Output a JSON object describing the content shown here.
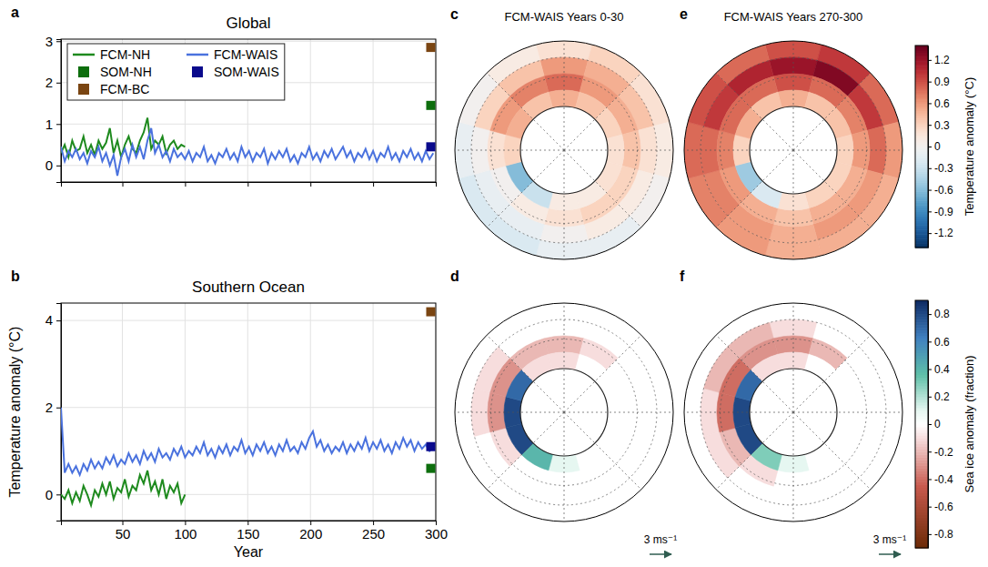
{
  "chart_data": [
    {
      "type": "line",
      "letter": "a",
      "title": "Global",
      "xlim": [
        1,
        300
      ],
      "xticks": [
        50,
        100,
        150,
        200,
        250,
        300
      ],
      "ylim": [
        -0.4,
        3.05
      ],
      "yticks": [
        0,
        1,
        2,
        3
      ],
      "grid": true,
      "tick_labels": "y",
      "legend": "upper left",
      "series": [
        {
          "name": "FCM-NH",
          "color": "#1e8a1e",
          "x": [
            1,
            4,
            7,
            10,
            13,
            16,
            19,
            22,
            25,
            28,
            31,
            34,
            37,
            40,
            43,
            46,
            49,
            52,
            55,
            58,
            61,
            64,
            67,
            70,
            73,
            76,
            79,
            82,
            85,
            88,
            91,
            94,
            97,
            100
          ],
          "values": [
            0.3,
            0.5,
            0.2,
            0.6,
            0.35,
            0.4,
            0.7,
            0.3,
            0.5,
            0.25,
            0.6,
            0.4,
            0.55,
            0.9,
            0.3,
            0.6,
            0.2,
            0.5,
            0.7,
            0.4,
            0.3,
            0.6,
            0.8,
            1.15,
            0.4,
            0.6,
            0.5,
            0.7,
            0.3,
            0.5,
            0.6,
            0.4,
            0.5,
            0.45
          ]
        },
        {
          "name": "FCM-WAIS",
          "color": "#4a72de",
          "x": [
            1,
            4,
            7,
            10,
            13,
            16,
            19,
            22,
            25,
            28,
            31,
            34,
            37,
            40,
            43,
            46,
            49,
            52,
            55,
            58,
            61,
            64,
            67,
            70,
            73,
            76,
            79,
            82,
            85,
            88,
            91,
            94,
            97,
            100,
            103,
            106,
            109,
            112,
            115,
            118,
            121,
            124,
            127,
            130,
            133,
            136,
            139,
            142,
            145,
            148,
            151,
            154,
            157,
            160,
            163,
            166,
            169,
            172,
            175,
            178,
            181,
            184,
            187,
            190,
            193,
            196,
            199,
            202,
            205,
            208,
            211,
            214,
            217,
            220,
            223,
            226,
            229,
            232,
            235,
            238,
            241,
            244,
            247,
            250,
            253,
            256,
            259,
            262,
            265,
            268,
            271,
            274,
            277,
            280,
            283,
            286,
            289,
            292,
            295,
            298
          ],
          "values": [
            0.45,
            0.1,
            0.35,
            0.2,
            0.4,
            0.15,
            0.3,
            0.05,
            0.35,
            0.2,
            0.45,
            0.1,
            0.3,
            0.0,
            0.25,
            -0.25,
            0.2,
            0.4,
            0.1,
            0.5,
            0.2,
            0.45,
            0.15,
            0.6,
            0.9,
            0.3,
            0.5,
            0.2,
            0.35,
            0.1,
            0.4,
            0.2,
            0.3,
            0.15,
            0.35,
            0.1,
            0.3,
            0.2,
            0.45,
            0.1,
            0.25,
            0.05,
            0.3,
            0.2,
            0.4,
            0.15,
            0.3,
            0.1,
            0.45,
            0.2,
            0.35,
            0.1,
            0.3,
            0.2,
            0.4,
            0.05,
            0.3,
            0.15,
            0.35,
            0.2,
            0.4,
            0.1,
            0.25,
            0.05,
            0.3,
            0.2,
            0.45,
            0.15,
            0.3,
            0.1,
            0.35,
            0.2,
            0.4,
            0.15,
            0.3,
            0.45,
            0.2,
            0.35,
            0.1,
            0.3,
            0.2,
            0.4,
            0.15,
            0.35,
            0.1,
            0.3,
            0.2,
            0.45,
            0.15,
            0.3,
            0.1,
            0.35,
            0.2,
            0.4,
            0.15,
            0.3,
            0.1,
            0.35,
            0.15,
            0.3
          ]
        },
        {
          "name": "SOM-NH",
          "type": "scatter",
          "marker": "square",
          "color": "#0d6e0d",
          "x": [
            296
          ],
          "values": [
            1.45
          ]
        },
        {
          "name": "SOM-WAIS",
          "type": "scatter",
          "marker": "square",
          "color": "#0a0a8c",
          "x": [
            296
          ],
          "values": [
            0.45
          ]
        },
        {
          "name": "FCM-BC",
          "type": "scatter",
          "marker": "square",
          "color": "#7a4512",
          "x": [
            296
          ],
          "values": [
            2.85
          ]
        }
      ]
    },
    {
      "type": "line",
      "letter": "b",
      "title": "Southern Ocean",
      "xlabel": "Year",
      "ylabel": "Temperature anomaly (°C)",
      "xlim": [
        1,
        300
      ],
      "xticks": [
        50,
        100,
        150,
        200,
        250,
        300
      ],
      "ylim": [
        -0.6,
        4.4
      ],
      "yticks": [
        0,
        2,
        4
      ],
      "grid": true,
      "series": [
        {
          "color": "#1e8a1e",
          "x": [
            1,
            4,
            7,
            10,
            13,
            16,
            19,
            22,
            25,
            28,
            31,
            34,
            37,
            40,
            43,
            46,
            49,
            52,
            55,
            58,
            61,
            64,
            67,
            70,
            73,
            76,
            79,
            82,
            85,
            88,
            91,
            94,
            97,
            100
          ],
          "values": [
            0.0,
            -0.1,
            0.1,
            -0.2,
            0.05,
            -0.15,
            0.2,
            0.0,
            -0.25,
            0.1,
            -0.05,
            0.25,
            0.0,
            0.3,
            -0.1,
            0.15,
            0.05,
            0.35,
            -0.05,
            0.2,
            0.1,
            0.45,
            0.25,
            0.55,
            0.1,
            0.3,
            0.0,
            0.35,
            -0.1,
            0.2,
            0.05,
            0.25,
            -0.2,
            0.0
          ]
        },
        {
          "color": "#4a72de",
          "x": [
            1,
            4,
            7,
            10,
            13,
            16,
            19,
            22,
            25,
            28,
            31,
            34,
            37,
            40,
            43,
            46,
            49,
            52,
            55,
            58,
            61,
            64,
            67,
            70,
            73,
            76,
            79,
            82,
            85,
            88,
            91,
            94,
            97,
            100,
            103,
            106,
            109,
            112,
            115,
            118,
            121,
            124,
            127,
            130,
            133,
            136,
            139,
            142,
            145,
            148,
            151,
            154,
            157,
            160,
            163,
            166,
            169,
            172,
            175,
            178,
            181,
            184,
            187,
            190,
            193,
            196,
            199,
            202,
            205,
            208,
            211,
            214,
            217,
            220,
            223,
            226,
            229,
            232,
            235,
            238,
            241,
            244,
            247,
            250,
            253,
            256,
            259,
            262,
            265,
            268,
            271,
            274,
            277,
            280,
            283,
            286,
            289,
            292,
            295,
            298
          ],
          "values": [
            2.0,
            0.5,
            0.7,
            0.5,
            0.65,
            0.45,
            0.7,
            0.55,
            0.8,
            0.6,
            0.75,
            0.6,
            0.85,
            0.7,
            0.9,
            0.65,
            0.8,
            0.7,
            0.95,
            0.75,
            0.9,
            0.7,
            1.0,
            0.8,
            0.95,
            0.75,
            1.05,
            0.85,
            0.95,
            0.8,
            1.05,
            0.9,
            1.1,
            0.85,
            1.0,
            0.9,
            1.1,
            0.95,
            1.2,
            0.9,
            1.05,
            0.85,
            1.1,
            0.95,
            1.15,
            0.9,
            1.1,
            1.0,
            1.25,
            0.95,
            1.1,
            0.9,
            1.15,
            1.0,
            1.2,
            0.95,
            1.1,
            0.9,
            1.15,
            1.0,
            1.25,
            1.0,
            1.1,
            0.95,
            1.2,
            1.05,
            1.3,
            1.45,
            1.1,
            1.25,
            1.0,
            1.15,
            0.95,
            1.1,
            1.0,
            1.2,
            0.95,
            1.15,
            1.0,
            1.2,
            1.05,
            1.3,
            1.0,
            1.2,
            1.05,
            1.25,
            1.0,
            1.15,
            0.95,
            1.2,
            1.05,
            1.3,
            1.1,
            1.25,
            1.0,
            1.2,
            1.05,
            1.15,
            1.0,
            1.1
          ]
        },
        {
          "type": "scatter",
          "marker": "square",
          "color": "#0d6e0d",
          "x": [
            296
          ],
          "values": [
            0.6
          ]
        },
        {
          "type": "scatter",
          "marker": "square",
          "color": "#0a0a8c",
          "x": [
            296
          ],
          "values": [
            1.1
          ]
        },
        {
          "type": "scatter",
          "marker": "square",
          "color": "#7a4512",
          "x": [
            296
          ],
          "values": [
            4.2
          ]
        }
      ]
    },
    {
      "type": "polar_heatmap",
      "letter": "c",
      "title": "FCM-WAIS Years 0-30",
      "lat_edges": [
        -40,
        -47.5,
        -55,
        -62.5,
        -70
      ],
      "lon_edges": [
        -15,
        15,
        45,
        75,
        105,
        135,
        165,
        195,
        225,
        255,
        285,
        315,
        345
      ],
      "cells": [
        [
          0.2,
          0.3,
          0.2,
          0.1,
          0.0,
          -0.1,
          -0.1,
          -0.2,
          -0.2,
          -0.1,
          0.0,
          0.1
        ],
        [
          0.6,
          0.5,
          0.4,
          0.2,
          0.1,
          0.1,
          0.0,
          -0.1,
          -0.1,
          0.0,
          0.3,
          0.4
        ],
        [
          0.8,
          0.6,
          0.5,
          0.4,
          0.3,
          0.3,
          0.2,
          0.1,
          0.0,
          0.2,
          0.6,
          0.7
        ],
        [
          0.5,
          0.4,
          0.3,
          0.2,
          0.2,
          0.1,
          0.1,
          -0.3,
          -0.6,
          0.3,
          0.5,
          0.4
        ]
      ]
    },
    {
      "type": "polar_heatmap",
      "letter": "d",
      "lat_edges": [
        -40,
        -47.5,
        -55,
        -62.5,
        -70
      ],
      "lon_edges": [
        -15,
        15,
        45,
        75,
        105,
        135,
        165,
        195,
        225,
        255,
        285,
        315,
        345
      ],
      "cells": [
        [
          0,
          0,
          0,
          0,
          0,
          0,
          0,
          0,
          0,
          0,
          0,
          0
        ],
        [
          0,
          0,
          0,
          0,
          0,
          0,
          0,
          0,
          0,
          -0.1,
          -0.1,
          0
        ],
        [
          -0.2,
          -0.1,
          0,
          0,
          0,
          0,
          0,
          0,
          -0.1,
          -0.3,
          -0.3,
          -0.2
        ],
        [
          -0.1,
          0,
          0,
          0,
          0,
          0,
          0.1,
          0.4,
          0.8,
          0.8,
          0.7,
          -0.1
        ]
      ],
      "wind_scale": {
        "value": 3,
        "label": "3 ms⁻¹"
      }
    },
    {
      "type": "polar_heatmap",
      "letter": "e",
      "title": "FCM-WAIS Years 270-300",
      "lat_edges": [
        -40,
        -47.5,
        -55,
        -62.5,
        -70
      ],
      "lon_edges": [
        -15,
        15,
        45,
        75,
        105,
        135,
        165,
        195,
        225,
        255,
        285,
        315,
        345
      ],
      "cells": [
        [
          0.9,
          1.0,
          0.8,
          0.6,
          0.5,
          0.5,
          0.5,
          0.6,
          0.7,
          0.8,
          0.9,
          0.8
        ],
        [
          1.2,
          1.3,
          1.0,
          0.8,
          0.6,
          0.6,
          0.5,
          0.6,
          0.7,
          0.8,
          1.0,
          1.1
        ],
        [
          0.9,
          0.8,
          0.7,
          0.6,
          0.5,
          0.5,
          0.4,
          0.5,
          0.6,
          0.7,
          0.8,
          0.8
        ],
        [
          0.5,
          0.4,
          0.4,
          0.3,
          0.3,
          0.3,
          0.2,
          -0.2,
          -0.5,
          0.3,
          0.5,
          0.4
        ]
      ],
      "colorbar": {
        "label": "Temperature anomaly (°C)",
        "lim": [
          -1.4,
          1.4
        ],
        "ticks": [
          -1.2,
          -0.9,
          -0.6,
          -0.3,
          0,
          0.3,
          0.6,
          0.9,
          1.2
        ]
      }
    },
    {
      "type": "polar_heatmap",
      "letter": "f",
      "lat_edges": [
        -40,
        -47.5,
        -55,
        -62.5,
        -70
      ],
      "lon_edges": [
        -15,
        15,
        45,
        75,
        105,
        135,
        165,
        195,
        225,
        255,
        285,
        315,
        345
      ],
      "cells": [
        [
          0,
          0,
          0,
          0,
          0,
          0,
          0,
          0,
          0,
          0,
          0,
          0
        ],
        [
          -0.1,
          0,
          0,
          0,
          0,
          0,
          0,
          0,
          -0.1,
          -0.1,
          -0.2,
          -0.2
        ],
        [
          -0.3,
          -0.2,
          0,
          0,
          0,
          0,
          0,
          -0.1,
          -0.2,
          -0.4,
          -0.4,
          -0.3
        ],
        [
          -0.1,
          0,
          0,
          0,
          0,
          0,
          0.1,
          0.3,
          0.8,
          0.8,
          0.7,
          -0.1
        ]
      ],
      "wind_scale": {
        "value": 3,
        "label": "3 ms⁻¹"
      },
      "colorbar": {
        "label": "Sea ice anomaly (fraction)",
        "lim": [
          -0.9,
          0.9
        ],
        "ticks": [
          -0.8,
          -0.6,
          -0.4,
          -0.2,
          0,
          0.2,
          0.4,
          0.6,
          0.8
        ]
      }
    }
  ]
}
